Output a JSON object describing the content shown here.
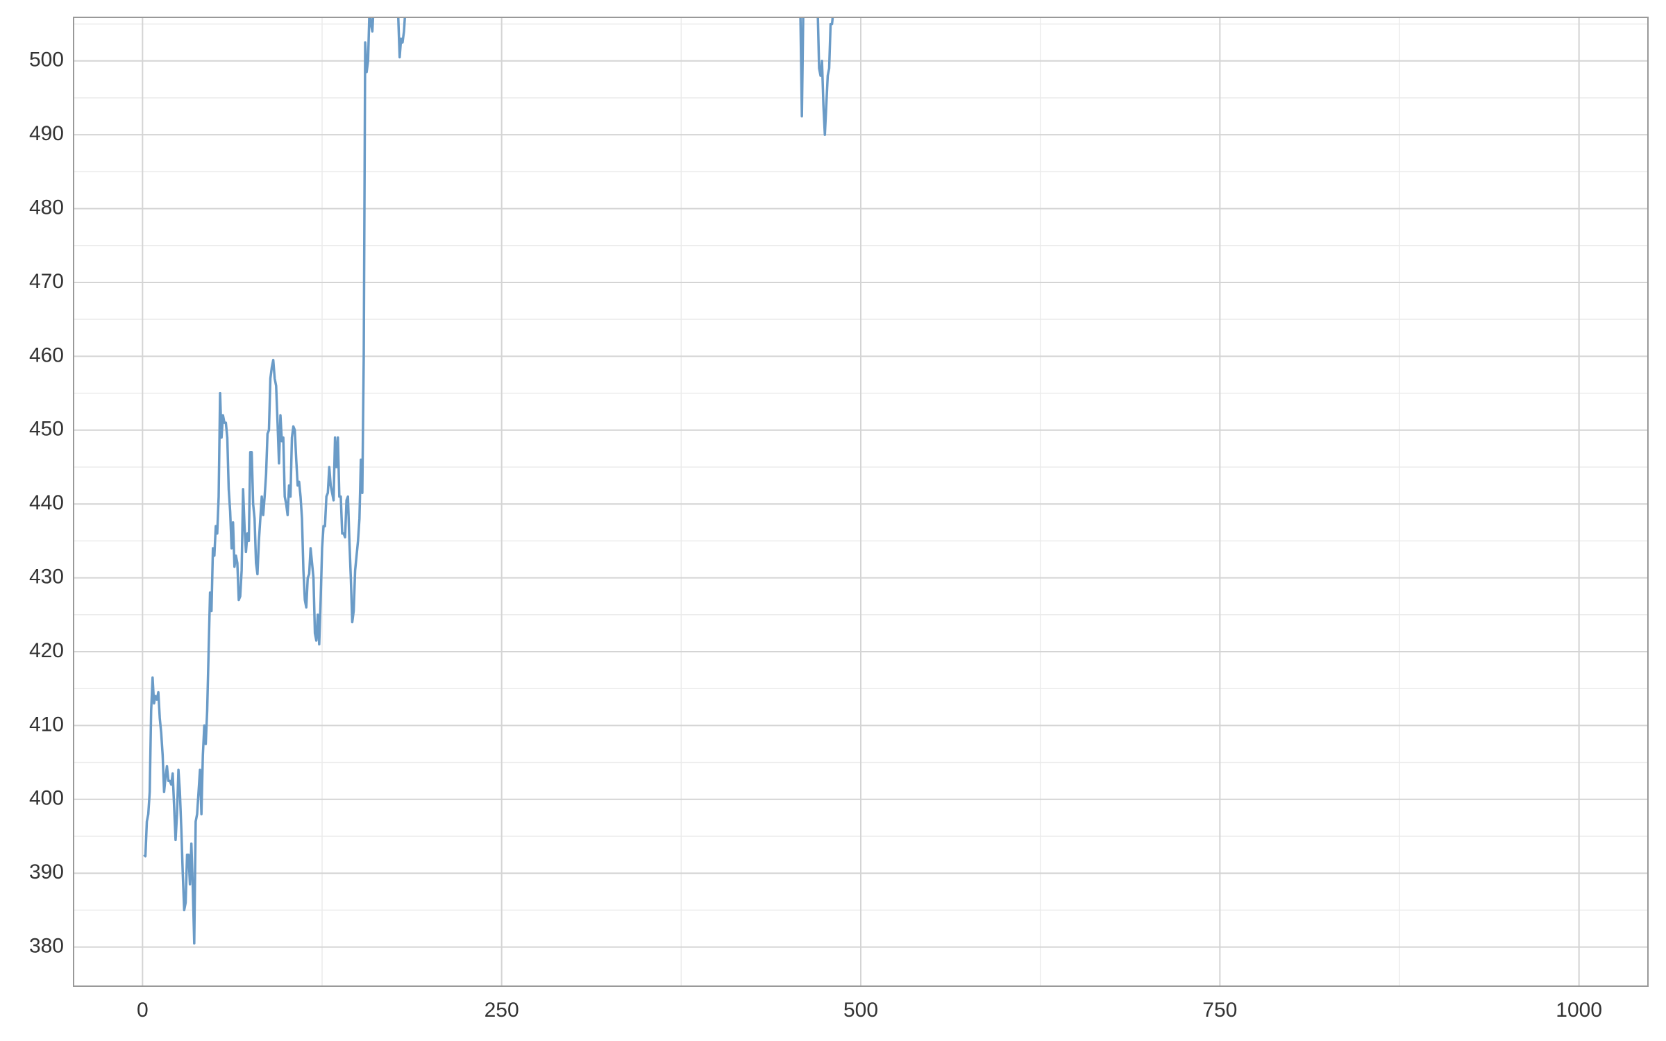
{
  "chart_data": {
    "type": "line",
    "x": [
      1,
      2,
      3,
      4,
      5,
      6,
      7,
      8,
      9,
      10,
      11,
      12,
      13,
      14,
      15,
      16,
      17,
      18,
      19,
      20,
      21,
      22,
      23,
      24,
      25,
      26,
      27,
      28,
      29,
      30,
      31,
      32,
      33,
      34,
      35,
      36,
      37,
      38,
      39,
      40,
      41,
      42,
      43,
      44,
      45,
      46,
      47,
      48,
      49,
      50,
      51,
      52,
      53,
      54,
      55,
      56,
      57,
      58,
      59,
      60,
      61,
      62,
      63,
      64,
      65,
      66,
      67,
      68,
      69,
      70,
      71,
      72,
      73,
      74,
      75,
      76,
      77,
      78,
      79,
      80,
      81,
      82,
      83,
      84,
      85,
      86,
      87,
      88,
      89,
      90,
      91,
      92,
      93,
      94,
      95,
      96,
      97,
      98,
      99,
      100,
      101,
      102,
      103,
      104,
      105,
      106,
      107,
      108,
      109,
      110,
      111,
      112,
      113,
      114,
      115,
      116,
      117,
      118,
      119,
      120,
      121,
      122,
      123,
      124,
      125,
      126,
      127,
      128,
      129,
      130,
      131,
      132,
      133,
      134,
      135,
      136,
      137,
      138,
      139,
      140,
      141,
      142,
      143,
      144,
      145,
      146,
      147,
      148,
      149,
      150,
      151,
      152,
      153,
      154,
      155,
      156,
      157,
      158,
      159,
      160,
      161,
      162,
      170,
      178,
      179,
      180,
      181,
      182,
      183,
      184,
      300,
      457,
      458,
      459,
      460,
      470,
      471,
      472,
      473,
      474,
      475,
      476,
      477,
      478,
      479,
      480,
      481,
      482
    ],
    "values": [
      392.5,
      392.3,
      397,
      398,
      401,
      412,
      416.5,
      413,
      414,
      413.5,
      414.5,
      411,
      409,
      406,
      401,
      403,
      404.5,
      402.5,
      402.5,
      402,
      403.5,
      399,
      394.5,
      398,
      404,
      401,
      396,
      390,
      385,
      386,
      392.5,
      392.5,
      388.5,
      394,
      388,
      380.5,
      397,
      398,
      401,
      404,
      398,
      406,
      410,
      407.5,
      412,
      420,
      428,
      425.5,
      434,
      433,
      437,
      436,
      441,
      455,
      449,
      452,
      451,
      451,
      449,
      442,
      439,
      434,
      437.5,
      431.5,
      433,
      432,
      427,
      427.5,
      431,
      442,
      437,
      433.5,
      436,
      435,
      447,
      447,
      440,
      438,
      432,
      430.5,
      435,
      438,
      441,
      438.5,
      441,
      444,
      449.5,
      450,
      457,
      458.5,
      459.5,
      457,
      456,
      451,
      445.5,
      452,
      448.5,
      449,
      441,
      440,
      438.5,
      442.5,
      441,
      449,
      450.5,
      450,
      446,
      442.5,
      443,
      441,
      438,
      431,
      427,
      426,
      430,
      430.5,
      434,
      432,
      430,
      422.5,
      421.5,
      425,
      421,
      427,
      434,
      437,
      437,
      441,
      441.5,
      445,
      442.5,
      441.5,
      440.5,
      449,
      445,
      449,
      441,
      441,
      436,
      436,
      435.5,
      440.5,
      441,
      435,
      430,
      424,
      425.5,
      431,
      433,
      435,
      438,
      446,
      441.5,
      460,
      502.5,
      498.5,
      500,
      507,
      505,
      504,
      508,
      510,
      512,
      506,
      500.5,
      503,
      502.5,
      504,
      507,
      512,
      520,
      510,
      506,
      492.5,
      507,
      507,
      499,
      498,
      500,
      494,
      490,
      494,
      498,
      499,
      505,
      505,
      507,
      512
    ],
    "color": "#6a9bc7",
    "xlim": [
      -48,
      1048
    ],
    "xticks": [
      0,
      250,
      500,
      750,
      1000
    ],
    "ylim": [
      374.7,
      505.9
    ],
    "yticks": [
      380,
      390,
      400,
      410,
      420,
      430,
      440,
      450,
      460,
      470,
      480,
      490,
      500
    ],
    "x_minor_ticks": [
      125,
      375,
      625,
      875
    ],
    "y_minor_ticks": [
      385,
      395,
      405,
      415,
      425,
      435,
      445,
      455,
      465,
      475,
      485,
      495,
      505
    ],
    "grid": true
  }
}
